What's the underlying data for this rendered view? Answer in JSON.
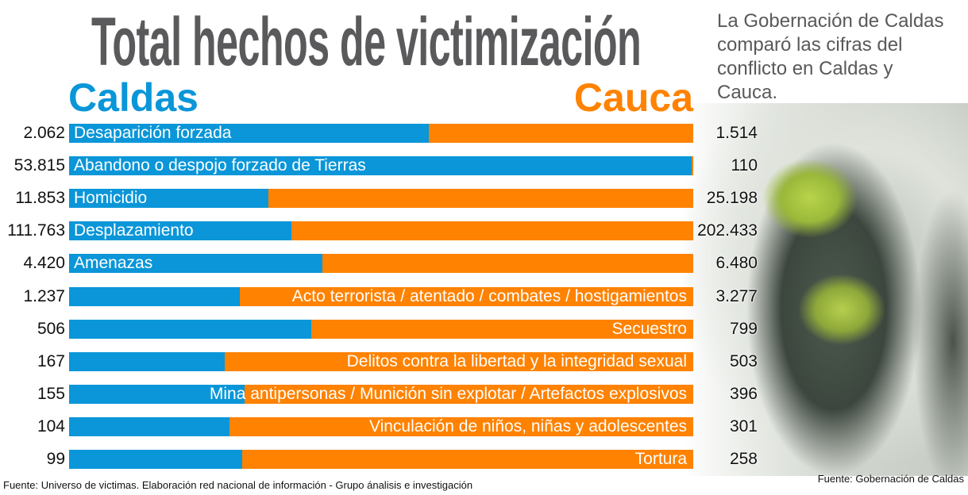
{
  "chart_data": {
    "type": "bar",
    "subtype": "100% stacked horizontal bar",
    "title": "Total hechos de victimización",
    "series": [
      {
        "name": "Caldas",
        "color": "#0a96d8",
        "values": [
          2062,
          53815,
          11853,
          111763,
          4420,
          1237,
          506,
          167,
          155,
          104,
          99
        ],
        "display": [
          "2.062",
          "53.815",
          "11.853",
          "111.763",
          "4.420",
          "1.237",
          "506",
          "167",
          "155",
          "104",
          "99"
        ]
      },
      {
        "name": "Cauca",
        "color": "#ff8200",
        "values": [
          1514,
          110,
          25198,
          202433,
          6480,
          3277,
          799,
          503,
          396,
          301,
          258
        ],
        "display": [
          "1.514",
          "110",
          "25.198",
          "202.433",
          "6.480",
          "3.277",
          "799",
          "503",
          "396",
          "301",
          "258"
        ]
      }
    ],
    "categories": [
      "Desaparición forzada",
      "Abandono o despojo forzado de Tierras",
      "Homicidio",
      "Desplazamiento",
      "Amenazas",
      "Acto terrorista / atentado / combates / hostigamientos",
      "Secuestro",
      "Delitos contra la libertad y la integridad sexual",
      "Mina antipersonas / Munición sin explotar / Artefactos explosivos",
      "Vinculación de niños, niñas y adolescentes",
      "Tortura"
    ],
    "label_align": [
      "left",
      "left",
      "left",
      "left",
      "left",
      "right",
      "right",
      "right",
      "right",
      "right",
      "right"
    ],
    "legend_left": "Caldas",
    "legend_right": "Cauca"
  },
  "intro_text": "La Gobernación de Caldas comparó las cifras del conflicto en Caldas y Cauca.",
  "source_left": "Fuente: Universo de victimas. Elaboración red nacional de información - Grupo ánalisis e investigación",
  "source_right": "Fuente: Gobernación de Caldas"
}
